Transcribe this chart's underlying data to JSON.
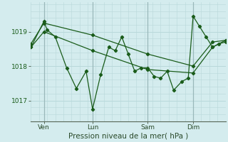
{
  "xlabel": "Pression niveau de la mer( hPa )",
  "bg_color": "#d4ecee",
  "grid_color": "#b8d8da",
  "line_color": "#1a5c1a",
  "marker_color": "#1a5c1a",
  "vline_color": "#9ab8ba",
  "yticks": [
    1017,
    1018,
    1019
  ],
  "ylim": [
    1016.4,
    1019.85
  ],
  "xlim": [
    0,
    120
  ],
  "xtick_positions": [
    8,
    38,
    72,
    100
  ],
  "xtick_labels": [
    "Ven",
    "Lun",
    "Sam",
    "Dim"
  ],
  "vline_positions": [
    8,
    38,
    72,
    100
  ],
  "series1_x": [
    0,
    8,
    10,
    15,
    22,
    28,
    34,
    38,
    43,
    48,
    52,
    56,
    60,
    64,
    68,
    72,
    76,
    80,
    84,
    88,
    93,
    97,
    100,
    104,
    108,
    112,
    116,
    120
  ],
  "series1_y": [
    1018.55,
    1019.3,
    1019.05,
    1018.85,
    1017.95,
    1017.35,
    1017.85,
    1016.75,
    1017.75,
    1018.55,
    1018.45,
    1018.85,
    1018.35,
    1017.85,
    1017.95,
    1017.95,
    1017.7,
    1017.65,
    1017.85,
    1017.3,
    1017.55,
    1017.65,
    1019.45,
    1019.15,
    1018.85,
    1018.55,
    1018.65,
    1018.7
  ],
  "series2_x": [
    0,
    8,
    38,
    72,
    100,
    112,
    120
  ],
  "series2_y": [
    1018.65,
    1019.25,
    1018.9,
    1018.35,
    1018.0,
    1018.7,
    1018.75
  ],
  "series3_x": [
    0,
    8,
    38,
    72,
    100,
    112,
    120
  ],
  "series3_y": [
    1018.55,
    1019.0,
    1018.45,
    1017.9,
    1017.8,
    1018.55,
    1018.75
  ]
}
